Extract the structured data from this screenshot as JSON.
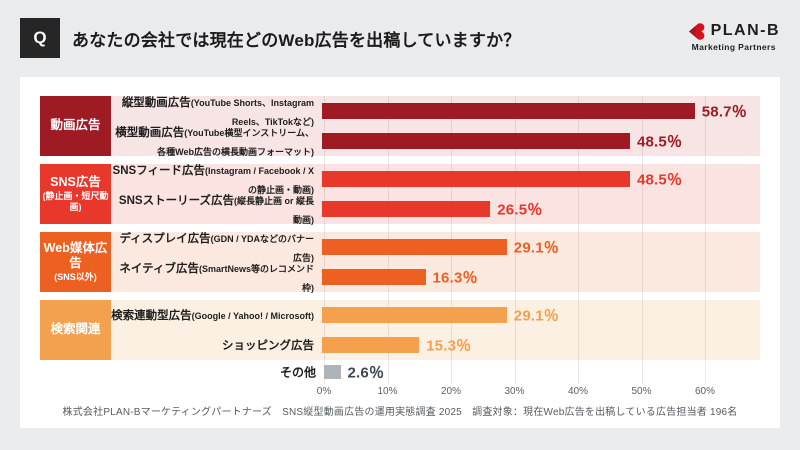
{
  "header": {
    "q_mark": "Q",
    "question": "あなたの会社では現在どのWeb広告を出稿していますか？"
  },
  "logo": {
    "brand": "PLAN-B",
    "subtitle": "Marketing Partners",
    "mark_color": "#D7101C",
    "mark_dark_color": "#9E1B23"
  },
  "footer": {
    "source": "株式会社PLAN-Bマーケティングパートナーズ　SNS縦型動画広告の運用実態調査 2025　調査対象：現在Web広告を出稿している広告担当者 196名"
  },
  "chart_data": {
    "type": "bar",
    "orientation": "horizontal",
    "unit": "%",
    "xlim": [
      0,
      60
    ],
    "x_ticks": [
      "0%",
      "10%",
      "20%",
      "30%",
      "40%",
      "50%",
      "60%"
    ],
    "grid": true,
    "groups": [
      {
        "label": "動画広告",
        "sublabel": "",
        "accent": "#9E1B23",
        "tint": "#F7E4E4",
        "items": [
          {
            "label": "縦型動画広告",
            "note": "(YouTube Shorts、Instagram Reels、TikTokなど)",
            "value": 58.7,
            "value_label": "58.7％"
          },
          {
            "label": "横型動画広告",
            "note": "(YouTube横型インストリーム、各種Web広告の横長動画フォーマット)",
            "value": 48.5,
            "value_label": "48.5％"
          }
        ]
      },
      {
        "label": "SNS広告",
        "sublabel": "(静止画・短尺動画)",
        "accent": "#E8372B",
        "tint": "#FAE3E0",
        "items": [
          {
            "label": "SNSフィード広告",
            "note": "(Instagram / Facebook / Xの静止画・動画)",
            "value": 48.5,
            "value_label": "48.5％"
          },
          {
            "label": "SNSストーリーズ広告",
            "note": "(縦長静止画 or 縦長動画)",
            "value": 26.5,
            "value_label": "26.5％"
          }
        ]
      },
      {
        "label": "Web媒体広告",
        "sublabel": "(SNS以外)",
        "accent": "#EC6122",
        "tint": "#FBE8DE",
        "items": [
          {
            "label": "ディスプレイ広告",
            "note": "(GDN / YDAなどのバナー広告)",
            "value": 29.1,
            "value_label": "29.1％"
          },
          {
            "label": "ネイティブ広告",
            "note": "(SmartNews等のレコメンド枠)",
            "value": 16.3,
            "value_label": "16.3％"
          }
        ]
      },
      {
        "label": "検索関連",
        "sublabel": "",
        "accent": "#F3A04F",
        "tint": "#FCF0E2",
        "items": [
          {
            "label": "検索連動型広告",
            "note": "(Google / Yahoo! / Microsoft)",
            "value": 29.1,
            "value_label": "29.1％"
          },
          {
            "label": "ショッピング広告",
            "note": "",
            "value": 15.3,
            "value_label": "15.3％"
          }
        ]
      }
    ],
    "other": {
      "label": "その他",
      "value": 2.6,
      "value_label": "2.6％",
      "bar_color": "#AEB4BA",
      "value_color": "#3B4752"
    }
  }
}
